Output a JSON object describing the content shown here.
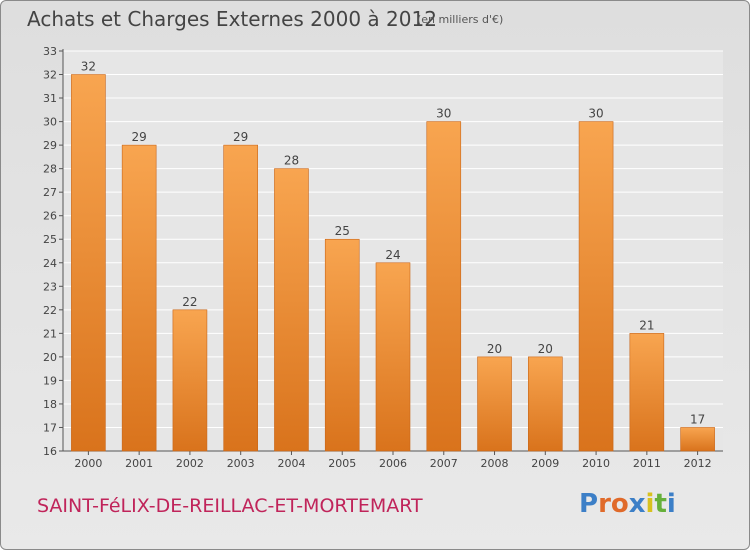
{
  "header": {
    "title": "Achats et Charges Externes 2000 à 2012",
    "subtitle": "(en milliers d'€)"
  },
  "footer": {
    "commune": "SAINT-FéLIX-DE-REILLAC-ET-MORTEMART",
    "brand": "Proxiti"
  },
  "colors": {
    "bar_light": "#f8a550",
    "bar_dark": "#d9731c",
    "brand_letters": [
      "#3c7fc7",
      "#e06a2a",
      "#e06a2a",
      "#3c7fc7",
      "#d8c11e",
      "#66b03a",
      "#3c7fc7"
    ]
  },
  "chart_data": {
    "type": "bar",
    "title": "Achats et Charges Externes 2000 à 2012",
    "subtitle": "(en milliers d'€)",
    "categories": [
      "2000",
      "2001",
      "2002",
      "2003",
      "2004",
      "2005",
      "2006",
      "2007",
      "2008",
      "2009",
      "2010",
      "2011",
      "2012"
    ],
    "values": [
      32,
      29,
      22,
      29,
      28,
      25,
      24,
      30,
      20,
      20,
      30,
      21,
      17
    ],
    "ylim": [
      16,
      33
    ],
    "yticks": [
      16,
      17,
      18,
      19,
      20,
      21,
      22,
      23,
      24,
      25,
      26,
      27,
      28,
      29,
      30,
      31,
      32,
      33
    ],
    "grid": true,
    "data_labels": true
  }
}
